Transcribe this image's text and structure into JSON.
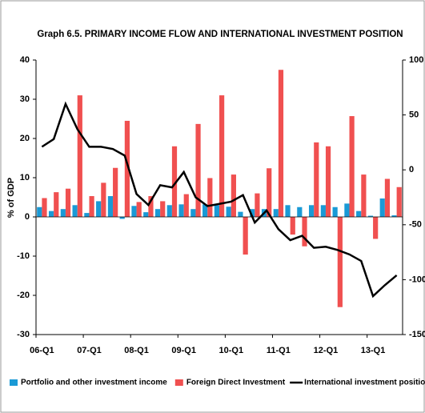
{
  "chart_data": {
    "type": "bar-line",
    "title": "Graph 6.5. PRIMARY INCOME FLOW AND INTERNATIONAL INVESTMENT POSITION",
    "y_label": "% of GDP",
    "categories": [
      "06-Q1",
      null,
      null,
      null,
      "07-Q1",
      null,
      null,
      null,
      "08-Q1",
      null,
      null,
      null,
      "09-Q1",
      null,
      null,
      null,
      "10-Q1",
      null,
      null,
      null,
      "11-Q1",
      null,
      null,
      null,
      "12-Q1",
      null,
      null,
      null,
      "13-Q1",
      null,
      null
    ],
    "series": [
      {
        "name": "Portfolio and other investment income",
        "color": "#1a9ad6",
        "kind": "bar",
        "values": [
          2.5,
          1.5,
          2,
          3,
          1,
          4,
          5.3,
          -0.5,
          2.8,
          1.2,
          2,
          3,
          3.2,
          2,
          3.2,
          3,
          2.6,
          1.3,
          2,
          2,
          2,
          3,
          2.5,
          3,
          3,
          2.5,
          3.4,
          1.5,
          0.3,
          4.7,
          0.4
        ]
      },
      {
        "name": "Foreign Direct Investment",
        "color": "#f05050",
        "kind": "bar",
        "values": [
          4.8,
          6.3,
          7.2,
          31,
          5.3,
          8.7,
          12.5,
          24.5,
          3.8,
          5.3,
          4,
          18,
          5.8,
          23.7,
          9.9,
          31,
          10.8,
          -9.6,
          6,
          12.4,
          37.5,
          -4.5,
          -7.5,
          19,
          18,
          -23,
          25.7,
          10.8,
          -5.6,
          9.7,
          7.6
        ]
      },
      {
        "name": "International investment position (rhs)",
        "color": "#000000",
        "kind": "line",
        "axis": "y2",
        "values": [
          21,
          28,
          60,
          37,
          21,
          21,
          19,
          13,
          -22,
          -32,
          -14,
          -16,
          -2,
          -25,
          -33,
          -31,
          -29,
          -23,
          -48,
          -37,
          -54,
          -64,
          -60,
          -71,
          -70,
          -73,
          -77,
          -83,
          -115,
          -105,
          -96
        ]
      }
    ],
    "ylim": [
      -30,
      40
    ],
    "yticks": [
      -30,
      -20,
      -10,
      0,
      10,
      20,
      30,
      40
    ],
    "y2lim": [
      -150,
      100
    ],
    "y2ticks": [
      -150,
      -100,
      -50,
      0,
      50,
      100
    ]
  }
}
